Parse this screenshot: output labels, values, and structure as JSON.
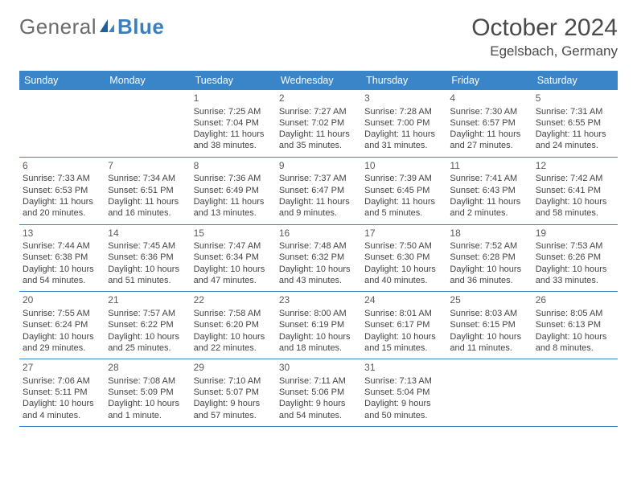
{
  "logo": {
    "general": "General",
    "blue": "Blue"
  },
  "title": "October 2024",
  "location": "Egelsbach, Germany",
  "colors": {
    "header_bg": "#3a84c8",
    "header_text": "#ffffff",
    "logo_gray": "#6b6b6b",
    "logo_blue": "#3a7fc4",
    "rule": "#3a84c8",
    "body_text": "#444444"
  },
  "weekdays": [
    "Sunday",
    "Monday",
    "Tuesday",
    "Wednesday",
    "Thursday",
    "Friday",
    "Saturday"
  ],
  "weeks": [
    [
      null,
      null,
      {
        "n": "1",
        "sr": "Sunrise: 7:25 AM",
        "ss": "Sunset: 7:04 PM",
        "dl": "Daylight: 11 hours and 38 minutes."
      },
      {
        "n": "2",
        "sr": "Sunrise: 7:27 AM",
        "ss": "Sunset: 7:02 PM",
        "dl": "Daylight: 11 hours and 35 minutes."
      },
      {
        "n": "3",
        "sr": "Sunrise: 7:28 AM",
        "ss": "Sunset: 7:00 PM",
        "dl": "Daylight: 11 hours and 31 minutes."
      },
      {
        "n": "4",
        "sr": "Sunrise: 7:30 AM",
        "ss": "Sunset: 6:57 PM",
        "dl": "Daylight: 11 hours and 27 minutes."
      },
      {
        "n": "5",
        "sr": "Sunrise: 7:31 AM",
        "ss": "Sunset: 6:55 PM",
        "dl": "Daylight: 11 hours and 24 minutes."
      }
    ],
    [
      {
        "n": "6",
        "sr": "Sunrise: 7:33 AM",
        "ss": "Sunset: 6:53 PM",
        "dl": "Daylight: 11 hours and 20 minutes."
      },
      {
        "n": "7",
        "sr": "Sunrise: 7:34 AM",
        "ss": "Sunset: 6:51 PM",
        "dl": "Daylight: 11 hours and 16 minutes."
      },
      {
        "n": "8",
        "sr": "Sunrise: 7:36 AM",
        "ss": "Sunset: 6:49 PM",
        "dl": "Daylight: 11 hours and 13 minutes."
      },
      {
        "n": "9",
        "sr": "Sunrise: 7:37 AM",
        "ss": "Sunset: 6:47 PM",
        "dl": "Daylight: 11 hours and 9 minutes."
      },
      {
        "n": "10",
        "sr": "Sunrise: 7:39 AM",
        "ss": "Sunset: 6:45 PM",
        "dl": "Daylight: 11 hours and 5 minutes."
      },
      {
        "n": "11",
        "sr": "Sunrise: 7:41 AM",
        "ss": "Sunset: 6:43 PM",
        "dl": "Daylight: 11 hours and 2 minutes."
      },
      {
        "n": "12",
        "sr": "Sunrise: 7:42 AM",
        "ss": "Sunset: 6:41 PM",
        "dl": "Daylight: 10 hours and 58 minutes."
      }
    ],
    [
      {
        "n": "13",
        "sr": "Sunrise: 7:44 AM",
        "ss": "Sunset: 6:38 PM",
        "dl": "Daylight: 10 hours and 54 minutes."
      },
      {
        "n": "14",
        "sr": "Sunrise: 7:45 AM",
        "ss": "Sunset: 6:36 PM",
        "dl": "Daylight: 10 hours and 51 minutes."
      },
      {
        "n": "15",
        "sr": "Sunrise: 7:47 AM",
        "ss": "Sunset: 6:34 PM",
        "dl": "Daylight: 10 hours and 47 minutes."
      },
      {
        "n": "16",
        "sr": "Sunrise: 7:48 AM",
        "ss": "Sunset: 6:32 PM",
        "dl": "Daylight: 10 hours and 43 minutes."
      },
      {
        "n": "17",
        "sr": "Sunrise: 7:50 AM",
        "ss": "Sunset: 6:30 PM",
        "dl": "Daylight: 10 hours and 40 minutes."
      },
      {
        "n": "18",
        "sr": "Sunrise: 7:52 AM",
        "ss": "Sunset: 6:28 PM",
        "dl": "Daylight: 10 hours and 36 minutes."
      },
      {
        "n": "19",
        "sr": "Sunrise: 7:53 AM",
        "ss": "Sunset: 6:26 PM",
        "dl": "Daylight: 10 hours and 33 minutes."
      }
    ],
    [
      {
        "n": "20",
        "sr": "Sunrise: 7:55 AM",
        "ss": "Sunset: 6:24 PM",
        "dl": "Daylight: 10 hours and 29 minutes."
      },
      {
        "n": "21",
        "sr": "Sunrise: 7:57 AM",
        "ss": "Sunset: 6:22 PM",
        "dl": "Daylight: 10 hours and 25 minutes."
      },
      {
        "n": "22",
        "sr": "Sunrise: 7:58 AM",
        "ss": "Sunset: 6:20 PM",
        "dl": "Daylight: 10 hours and 22 minutes."
      },
      {
        "n": "23",
        "sr": "Sunrise: 8:00 AM",
        "ss": "Sunset: 6:19 PM",
        "dl": "Daylight: 10 hours and 18 minutes."
      },
      {
        "n": "24",
        "sr": "Sunrise: 8:01 AM",
        "ss": "Sunset: 6:17 PM",
        "dl": "Daylight: 10 hours and 15 minutes."
      },
      {
        "n": "25",
        "sr": "Sunrise: 8:03 AM",
        "ss": "Sunset: 6:15 PM",
        "dl": "Daylight: 10 hours and 11 minutes."
      },
      {
        "n": "26",
        "sr": "Sunrise: 8:05 AM",
        "ss": "Sunset: 6:13 PM",
        "dl": "Daylight: 10 hours and 8 minutes."
      }
    ],
    [
      {
        "n": "27",
        "sr": "Sunrise: 7:06 AM",
        "ss": "Sunset: 5:11 PM",
        "dl": "Daylight: 10 hours and 4 minutes."
      },
      {
        "n": "28",
        "sr": "Sunrise: 7:08 AM",
        "ss": "Sunset: 5:09 PM",
        "dl": "Daylight: 10 hours and 1 minute."
      },
      {
        "n": "29",
        "sr": "Sunrise: 7:10 AM",
        "ss": "Sunset: 5:07 PM",
        "dl": "Daylight: 9 hours and 57 minutes."
      },
      {
        "n": "30",
        "sr": "Sunrise: 7:11 AM",
        "ss": "Sunset: 5:06 PM",
        "dl": "Daylight: 9 hours and 54 minutes."
      },
      {
        "n": "31",
        "sr": "Sunrise: 7:13 AM",
        "ss": "Sunset: 5:04 PM",
        "dl": "Daylight: 9 hours and 50 minutes."
      },
      null,
      null
    ]
  ]
}
